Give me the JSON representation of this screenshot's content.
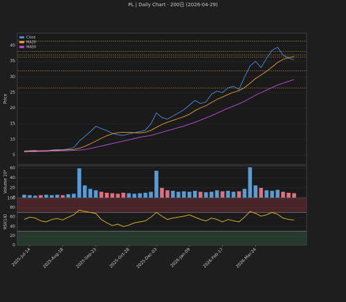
{
  "chart_data": [
    {
      "type": "line",
      "title": "PL  |  Daily Chart · 200日  (2026-04-29)",
      "ylabel": "Price",
      "ylim": [
        2,
        44
      ],
      "yticks": [
        5,
        10,
        15,
        20,
        25,
        30,
        35,
        40
      ],
      "grid": true,
      "legend": "upper left",
      "levels": [
        41.5,
        38.2,
        37.0,
        36.3,
        32.0,
        26.5
      ],
      "level_color": "#c8a030",
      "series": [
        {
          "name": "Close",
          "color": "#4a90e2",
          "values": [
            6.3,
            6.4,
            6.5,
            6.2,
            6.4,
            6.6,
            6.8,
            6.7,
            7.0,
            7.4,
            9.5,
            11,
            12.5,
            14.2,
            13.5,
            12.8,
            12.0,
            11.5,
            11.3,
            11.8,
            12.2,
            12.5,
            13.0,
            15.0,
            18.5,
            17.0,
            16.5,
            17.5,
            18.5,
            19.5,
            21.0,
            22.5,
            21.5,
            22.0,
            24.5,
            25.5,
            25.0,
            26.5,
            27.0,
            26.0,
            30.0,
            33.5,
            35.0,
            33.0,
            36.0,
            38.5,
            39.5,
            37.0,
            36.0,
            35.5
          ]
        },
        {
          "name": "MA20",
          "color": "#f0a030",
          "values": [
            6.2,
            6.3,
            6.3,
            6.4,
            6.4,
            6.5,
            6.5,
            6.6,
            6.7,
            6.8,
            7.2,
            7.8,
            8.6,
            9.5,
            10.4,
            11.2,
            11.8,
            12.2,
            12.3,
            12.3,
            12.2,
            12.1,
            12.3,
            12.9,
            13.9,
            14.8,
            15.5,
            16.1,
            16.7,
            17.3,
            18.1,
            19.2,
            20.1,
            20.8,
            21.8,
            22.8,
            23.6,
            24.4,
            25.1,
            25.6,
            26.6,
            28.0,
            29.5,
            30.6,
            31.8,
            33.2,
            34.6,
            35.6,
            36.2,
            36.5
          ]
        },
        {
          "name": "MA50",
          "color": "#c050e0",
          "values": [
            6.0,
            6.1,
            6.1,
            6.2,
            6.2,
            6.3,
            6.3,
            6.4,
            6.4,
            6.5,
            6.6,
            6.8,
            7.1,
            7.5,
            7.9,
            8.3,
            8.7,
            9.1,
            9.5,
            9.9,
            10.3,
            10.7,
            11.0,
            11.3,
            11.8,
            12.3,
            12.8,
            13.3,
            13.8,
            14.3,
            14.9,
            15.5,
            16.2,
            16.9,
            17.6,
            18.4,
            19.2,
            20.0,
            20.7,
            21.4,
            22.2,
            23.2,
            24.2,
            25.0,
            25.8,
            26.6,
            27.4,
            28.0,
            28.6,
            29.2
          ]
        }
      ]
    },
    {
      "type": "bar",
      "ylabel": "Volume  10⁶",
      "ylim": [
        0,
        65
      ],
      "yticks": [
        0,
        20,
        40,
        60
      ],
      "grid": true,
      "up_color": "#5b9bd5",
      "down_color": "#e07080",
      "values": [
        6,
        5,
        4,
        5,
        6,
        5,
        6,
        5,
        7,
        8,
        60,
        25,
        18,
        15,
        12,
        10,
        9,
        8,
        10,
        9,
        8,
        9,
        10,
        12,
        55,
        20,
        15,
        14,
        12,
        13,
        12,
        14,
        12,
        11,
        12,
        15,
        13,
        14,
        12,
        13,
        18,
        62,
        25,
        20,
        15,
        14,
        16,
        12,
        10,
        9
      ]
    },
    {
      "type": "line",
      "ylabel": "RSI(14)",
      "ylim": [
        0,
        100
      ],
      "yticks": [
        0,
        20,
        40,
        60,
        80,
        100
      ],
      "grid": true,
      "bands": [
        70,
        30
      ],
      "color": "#e8c020",
      "values": [
        55,
        60,
        58,
        52,
        50,
        55,
        57,
        54,
        60,
        65,
        75,
        72,
        70,
        68,
        55,
        48,
        42,
        45,
        40,
        43,
        48,
        50,
        52,
        60,
        70,
        62,
        55,
        58,
        60,
        62,
        65,
        60,
        55,
        52,
        58,
        55,
        50,
        55,
        52,
        50,
        60,
        72,
        68,
        62,
        65,
        70,
        66,
        58,
        55,
        54
      ],
      "categories": [
        null,
        "2025-Jul-14",
        null,
        null,
        null,
        null,
        null,
        "2025-Aug-18",
        null,
        null,
        null,
        null,
        null,
        "2025-Sep-23",
        null,
        null,
        null,
        null,
        null,
        "2025-Oct-28",
        null,
        null,
        null,
        null,
        "2025-Dec-03",
        null,
        null,
        null,
        null,
        null,
        "2026-Jan-09",
        null,
        null,
        null,
        null,
        null,
        "2026-Feb-17",
        null,
        null,
        null,
        null,
        null,
        "2026-Mar-24",
        null,
        null,
        null,
        null,
        null,
        null,
        null
      ]
    }
  ]
}
